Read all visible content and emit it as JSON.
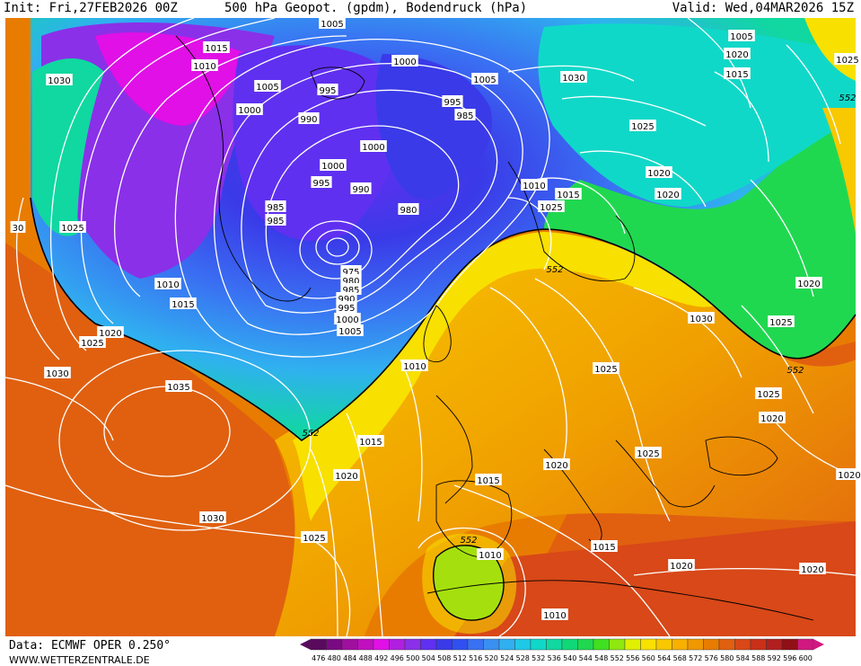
{
  "header": {
    "init": "Init: Fri,27FEB2026 00Z",
    "title": "500 hPa Geopot. (gpdm), Bodendruck (hPa)",
    "valid": "Valid: Wed,04MAR2026 15Z"
  },
  "footer": {
    "data_source": "Data: ECMWF OPER 0.250°",
    "website": "WWW.WETTERZENTRALE.DE"
  },
  "legend": {
    "levels": [
      "476",
      "480",
      "484",
      "488",
      "492",
      "496",
      "500",
      "504",
      "508",
      "512",
      "516",
      "520",
      "524",
      "528",
      "532",
      "536",
      "540",
      "544",
      "548",
      "552",
      "556",
      "560",
      "564",
      "568",
      "572",
      "576",
      "580",
      "584",
      "588",
      "592",
      "596",
      "600"
    ],
    "colors": [
      "#5a0a5e",
      "#7a0a82",
      "#a0109e",
      "#c010c0",
      "#e010e6",
      "#b020e0",
      "#8a30e8",
      "#6030f0",
      "#3a3ae8",
      "#3050f0",
      "#3a70f2",
      "#3a90f0",
      "#30b0f0",
      "#20c8e8",
      "#10d8c8",
      "#10d8a0",
      "#10d878",
      "#20d850",
      "#40e020",
      "#90e810",
      "#e0f000",
      "#f8e000",
      "#f8c800",
      "#f8b000",
      "#f09800",
      "#e87c00",
      "#e06010",
      "#d84818",
      "#c83018",
      "#b02020",
      "#901018",
      "#d01880"
    ]
  },
  "pressure_labels": [
    {
      "text": "1005"
    },
    {
      "text": "1015"
    },
    {
      "text": "1010"
    },
    {
      "text": "1030"
    },
    {
      "text": "1005"
    },
    {
      "text": "1000"
    },
    {
      "text": "1005"
    },
    {
      "text": "995"
    },
    {
      "text": "990"
    },
    {
      "text": "1000"
    },
    {
      "text": "995"
    },
    {
      "text": "1005"
    },
    {
      "text": "985"
    },
    {
      "text": "1030"
    },
    {
      "text": "1025"
    },
    {
      "text": "1020"
    },
    {
      "text": "1015"
    },
    {
      "text": "1025"
    },
    {
      "text": "1000"
    },
    {
      "text": "1000"
    },
    {
      "text": "995"
    },
    {
      "text": "990"
    },
    {
      "text": "980"
    },
    {
      "text": "985"
    },
    {
      "text": "985"
    },
    {
      "text": "1010"
    },
    {
      "text": "1015"
    },
    {
      "text": "1020"
    },
    {
      "text": "1020"
    },
    {
      "text": "1025"
    },
    {
      "text": "975"
    },
    {
      "text": "980"
    },
    {
      "text": "985"
    },
    {
      "text": "990"
    },
    {
      "text": "995"
    },
    {
      "text": "1000"
    },
    {
      "text": "1005"
    },
    {
      "text": "1025"
    },
    {
      "text": "1010"
    },
    {
      "text": "1015"
    },
    {
      "text": "1020"
    },
    {
      "text": "1025"
    },
    {
      "text": "1030"
    },
    {
      "text": "1035"
    },
    {
      "text": "1010"
    },
    {
      "text": "1015"
    },
    {
      "text": "1020"
    },
    {
      "text": "1025"
    },
    {
      "text": "1030"
    },
    {
      "text": "1025"
    },
    {
      "text": "1020"
    },
    {
      "text": "1025"
    },
    {
      "text": "1015"
    },
    {
      "text": "1020"
    },
    {
      "text": "1025"
    },
    {
      "text": "1030"
    },
    {
      "text": "1025"
    },
    {
      "text": "1020"
    },
    {
      "text": "1010"
    },
    {
      "text": "1010"
    },
    {
      "text": "1015"
    },
    {
      "text": "1020"
    },
    {
      "text": "1020"
    },
    {
      "text": "1020"
    },
    {
      "text": "30"
    }
  ],
  "contour_labels": [
    {
      "text": "552"
    },
    {
      "text": "552"
    },
    {
      "text": "552"
    },
    {
      "text": "552"
    },
    {
      "text": "552"
    }
  ]
}
